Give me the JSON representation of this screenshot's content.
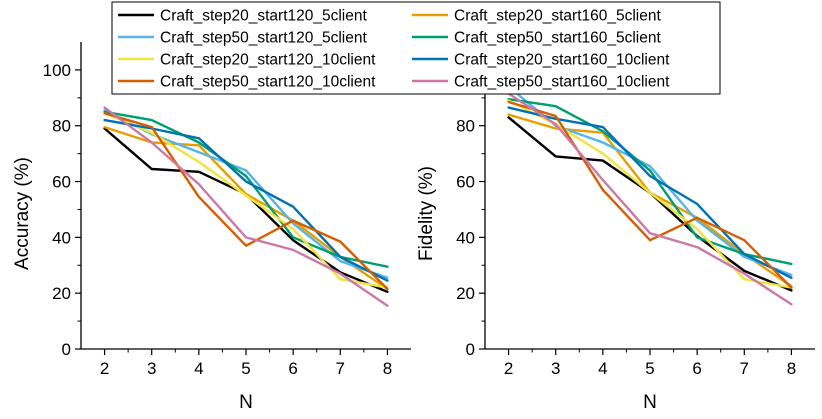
{
  "chart_data": [
    {
      "type": "line",
      "xlabel": "N",
      "ylabel": "Accuracy (%)",
      "x": [
        2,
        3,
        4,
        5,
        6,
        7,
        8
      ],
      "xlim": [
        1.5,
        8.5
      ],
      "ylim": [
        0,
        110
      ],
      "xticks": [
        2,
        3,
        4,
        5,
        6,
        7,
        8
      ],
      "yticks": [
        0,
        20,
        40,
        60,
        80,
        100
      ],
      "series": [
        {
          "name": "Craft_step20_start120_5client",
          "color": "#000000",
          "values": [
            79,
            64.5,
            63.5,
            55.5,
            39,
            27.5,
            20.5
          ]
        },
        {
          "name": "Craft_step20_start160_5client",
          "color": "#E69F00",
          "values": [
            79.5,
            74,
            73,
            55.5,
            46,
            33,
            21.5
          ]
        },
        {
          "name": "Craft_step50_start120_5client",
          "color": "#56B4E9",
          "values": [
            85.5,
            77,
            70.5,
            64,
            45,
            31.5,
            25.5
          ]
        },
        {
          "name": "Craft_step50_start160_5client",
          "color": "#009E73",
          "values": [
            85,
            82,
            74,
            62,
            40,
            33,
            29.5
          ]
        },
        {
          "name": "Craft_step20_start120_10client",
          "color": "#F0E442",
          "values": [
            84.5,
            77.5,
            67,
            55,
            43,
            25,
            22
          ]
        },
        {
          "name": "Craft_step20_start160_10client",
          "color": "#0072B2",
          "values": [
            82,
            79,
            75.5,
            60,
            51,
            33,
            24.5
          ]
        },
        {
          "name": "Craft_step50_start120_10client",
          "color": "#D55E00",
          "values": [
            84.5,
            79.5,
            54.5,
            37,
            46,
            38.5,
            21.5
          ]
        },
        {
          "name": "Craft_step50_start160_10client",
          "color": "#CC79A7",
          "values": [
            86.5,
            74,
            59,
            40,
            35.5,
            27,
            15.5
          ]
        }
      ]
    },
    {
      "type": "line",
      "xlabel": "N",
      "ylabel": "Fidelity (%)",
      "x": [
        2,
        3,
        4,
        5,
        6,
        7,
        8
      ],
      "xlim": [
        1.5,
        8.5
      ],
      "ylim": [
        0,
        110
      ],
      "xticks": [
        2,
        3,
        4,
        5,
        6,
        7,
        8
      ],
      "yticks": [
        0,
        20,
        40,
        60,
        80
      ],
      "series": [
        {
          "name": "Craft_step20_start120_5client",
          "color": "#000000",
          "values": [
            83,
            69,
            67.5,
            56,
            40.5,
            28,
            21
          ]
        },
        {
          "name": "Craft_step20_start160_5client",
          "color": "#E69F00",
          "values": [
            84,
            79,
            77.5,
            56,
            47,
            34,
            22.5
          ]
        },
        {
          "name": "Craft_step50_start120_5client",
          "color": "#56B4E9",
          "values": [
            94,
            80,
            74,
            65.5,
            46,
            33,
            26.5
          ]
        },
        {
          "name": "Craft_step50_start160_5client",
          "color": "#009E73",
          "values": [
            89.5,
            87,
            78,
            64,
            40,
            34,
            30.5
          ]
        },
        {
          "name": "Craft_step20_start120_10client",
          "color": "#F0E442",
          "values": [
            89,
            80.5,
            70,
            56,
            43,
            25,
            22
          ]
        },
        {
          "name": "Craft_step20_start160_10client",
          "color": "#0072B2",
          "values": [
            86.5,
            82.5,
            79.5,
            62,
            52,
            34,
            25.5
          ]
        },
        {
          "name": "Craft_step50_start120_10client",
          "color": "#D55E00",
          "values": [
            88.5,
            83.5,
            57,
            39,
            47,
            39,
            22
          ]
        },
        {
          "name": "Craft_step50_start160_10client",
          "color": "#CC79A7",
          "values": [
            91.5,
            80.5,
            60.5,
            41.5,
            36.5,
            27,
            16
          ]
        }
      ]
    }
  ]
}
